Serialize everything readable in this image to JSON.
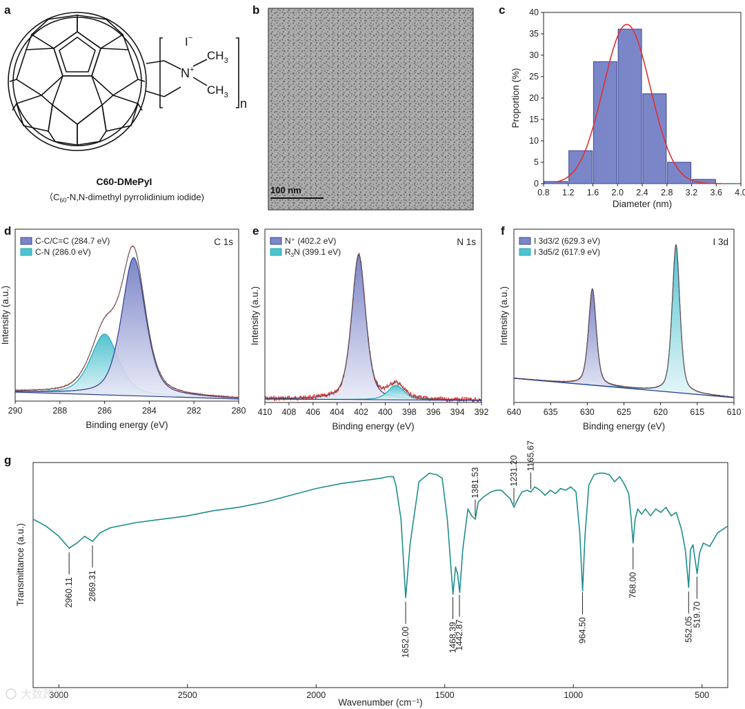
{
  "panels": {
    "a": {
      "letter": "a",
      "compound_name": "C60-DMePyI",
      "compound_desc_prefix": "（C",
      "compound_desc_sub": "60",
      "compound_desc_suffix": "-N,N-dimethyl pyrrolidinium iodide)",
      "structure_labels": {
        "iodide": "I",
        "iodide_charge": "−",
        "nitrogen": "N",
        "nitrogen_charge": "+",
        "methyl_top": "CH",
        "methyl_top_sub": "3",
        "methyl_bottom": "CH",
        "methyl_bottom_sub": "3",
        "repeat": "n"
      }
    },
    "b": {
      "letter": "b",
      "scale_bar": "100 nm"
    },
    "c": {
      "letter": "c"
    },
    "d": {
      "letter": "d"
    },
    "e": {
      "letter": "e"
    },
    "f": {
      "letter": "f"
    },
    "g": {
      "letter": "g"
    }
  },
  "watermark": "大数跨境",
  "colors": {
    "blue_fill": "#7b86c9",
    "cyan_fill": "#4cc4d0",
    "red_fit": "#e03030",
    "ftir_line": "#1f8c8c",
    "baseline": "#2b3b8f"
  },
  "chart_data": [
    {
      "id": "c",
      "type": "bar",
      "title": "",
      "xlabel": "Diameter (nm)",
      "ylabel": "Proportion (%)",
      "xlim": [
        0.8,
        4.0
      ],
      "ylim": [
        0,
        40
      ],
      "xticks": [
        "0.8",
        "1.2",
        "1.6",
        "2.0",
        "2.4",
        "2.8",
        "3.2",
        "3.6",
        "4.0"
      ],
      "yticks": [
        "0",
        "5",
        "10",
        "15",
        "20",
        "25",
        "30",
        "35",
        "40"
      ],
      "bin_centers": [
        1.0,
        1.4,
        1.8,
        2.2,
        2.6,
        3.0,
        3.4
      ],
      "values": [
        0.5,
        7.7,
        28.5,
        36.1,
        21.0,
        5.0,
        1.0
      ],
      "fit": {
        "type": "gaussian",
        "center": 2.15,
        "peak": 37.2,
        "sigma": 0.38
      }
    },
    {
      "id": "d",
      "type": "line",
      "corner_label": "C 1s",
      "xlabel": "Binding energy (eV)",
      "ylabel": "Intensity (a.u.)",
      "xlim": [
        290,
        280
      ],
      "xticks": [
        "290",
        "288",
        "286",
        "284",
        "282",
        "280"
      ],
      "series": [
        {
          "name": "C-C/C=C (284.7 eV)",
          "center": 284.7,
          "height": 1.0,
          "width": 0.55
        },
        {
          "name": "C-N (286.0 eV)",
          "center": 286.0,
          "height": 0.44,
          "width": 0.65
        }
      ]
    },
    {
      "id": "e",
      "type": "line",
      "corner_label": "N 1s",
      "xlabel": "Binding energy (eV)",
      "ylabel": "Intensity (a.u.)",
      "xlim": [
        410,
        392
      ],
      "xticks": [
        "410",
        "408",
        "406",
        "404",
        "402",
        "400",
        "398",
        "396",
        "394",
        "392"
      ],
      "series": [
        {
          "name": "N⁺ (402.2 eV)",
          "center": 402.2,
          "height": 1.0,
          "width": 0.6
        },
        {
          "name_prefix": "R",
          "name_sub": "3",
          "name_suffix": "N (399.1 eV)",
          "name": "R3N (399.1 eV)",
          "center": 399.1,
          "height": 0.1,
          "width": 0.7
        }
      ]
    },
    {
      "id": "f",
      "type": "line",
      "corner_label": "I 3d",
      "xlabel": "Binding energy (eV)",
      "ylabel": "Intensity (a.u.)",
      "xlim": [
        640,
        610
      ],
      "xticks": [
        "640",
        "635",
        "630",
        "625",
        "620",
        "615",
        "610"
      ],
      "series": [
        {
          "name": "I 3d3/2 (629.3 eV)",
          "center": 629.3,
          "height": 0.62,
          "width": 0.55
        },
        {
          "name": "I 3d5/2 (617.9 eV)",
          "center": 617.9,
          "height": 0.95,
          "width": 0.55
        }
      ]
    },
    {
      "id": "g",
      "type": "line",
      "xlabel": "Wavenumber (cm⁻¹)",
      "ylabel": "Transmittance (a.u.)",
      "xlim": [
        3100,
        400
      ],
      "xticks": [
        "3000",
        "2500",
        "2000",
        "1500",
        "1000",
        "500"
      ],
      "x": [
        3100,
        3050,
        3000,
        2960,
        2930,
        2900,
        2869,
        2840,
        2800,
        2700,
        2600,
        2500,
        2400,
        2300,
        2200,
        2100,
        2000,
        1900,
        1800,
        1750,
        1720,
        1700,
        1690,
        1670,
        1652,
        1635,
        1600,
        1560,
        1530,
        1510,
        1490,
        1480,
        1468,
        1458,
        1450,
        1442,
        1430,
        1410,
        1395,
        1381,
        1370,
        1350,
        1320,
        1300,
        1280,
        1260,
        1245,
        1231,
        1215,
        1200,
        1180,
        1165,
        1150,
        1130,
        1110,
        1090,
        1070,
        1050,
        1030,
        1010,
        990,
        975,
        964,
        955,
        940,
        920,
        900,
        880,
        860,
        840,
        820,
        800,
        785,
        775,
        768,
        760,
        750,
        735,
        720,
        700,
        680,
        660,
        640,
        620,
        600,
        580,
        565,
        552,
        545,
        535,
        519,
        510,
        495,
        470,
        440,
        400
      ],
      "y": [
        0.7,
        0.66,
        0.6,
        0.53,
        0.56,
        0.6,
        0.57,
        0.62,
        0.65,
        0.68,
        0.7,
        0.72,
        0.75,
        0.77,
        0.8,
        0.84,
        0.88,
        0.91,
        0.93,
        0.94,
        0.95,
        0.95,
        0.9,
        0.7,
        0.24,
        0.55,
        0.92,
        0.97,
        0.96,
        0.94,
        0.7,
        0.5,
        0.26,
        0.42,
        0.38,
        0.27,
        0.52,
        0.76,
        0.72,
        0.7,
        0.8,
        0.83,
        0.86,
        0.87,
        0.87,
        0.84,
        0.82,
        0.77,
        0.82,
        0.86,
        0.87,
        0.86,
        0.89,
        0.87,
        0.84,
        0.87,
        0.85,
        0.88,
        0.87,
        0.89,
        0.86,
        0.62,
        0.28,
        0.6,
        0.9,
        0.96,
        0.97,
        0.97,
        0.96,
        0.92,
        0.95,
        0.9,
        0.85,
        0.7,
        0.56,
        0.7,
        0.76,
        0.73,
        0.76,
        0.72,
        0.76,
        0.74,
        0.77,
        0.72,
        0.74,
        0.64,
        0.52,
        0.3,
        0.52,
        0.55,
        0.38,
        0.5,
        0.56,
        0.54,
        0.62,
        0.66
      ],
      "peaks": [
        {
          "label": "2960.11",
          "x": 2960.11,
          "side": "below"
        },
        {
          "label": "2869.31",
          "x": 2869.31,
          "side": "below"
        },
        {
          "label": "1652.00",
          "x": 1652.0,
          "side": "below"
        },
        {
          "label": "1468.39",
          "x": 1468.39,
          "side": "below"
        },
        {
          "label": "1442.87",
          "x": 1442.87,
          "side": "below"
        },
        {
          "label": "1381.53",
          "x": 1381.53,
          "side": "above"
        },
        {
          "label": "1231.20",
          "x": 1231.2,
          "side": "above"
        },
        {
          "label": "1165.67",
          "x": 1165.67,
          "side": "above"
        },
        {
          "label": "964.50",
          "x": 964.5,
          "side": "below"
        },
        {
          "label": "768.00",
          "x": 768.0,
          "side": "below"
        },
        {
          "label": "552.05",
          "x": 552.05,
          "side": "below"
        },
        {
          "label": "519.70",
          "x": 519.7,
          "side": "below"
        }
      ]
    }
  ]
}
